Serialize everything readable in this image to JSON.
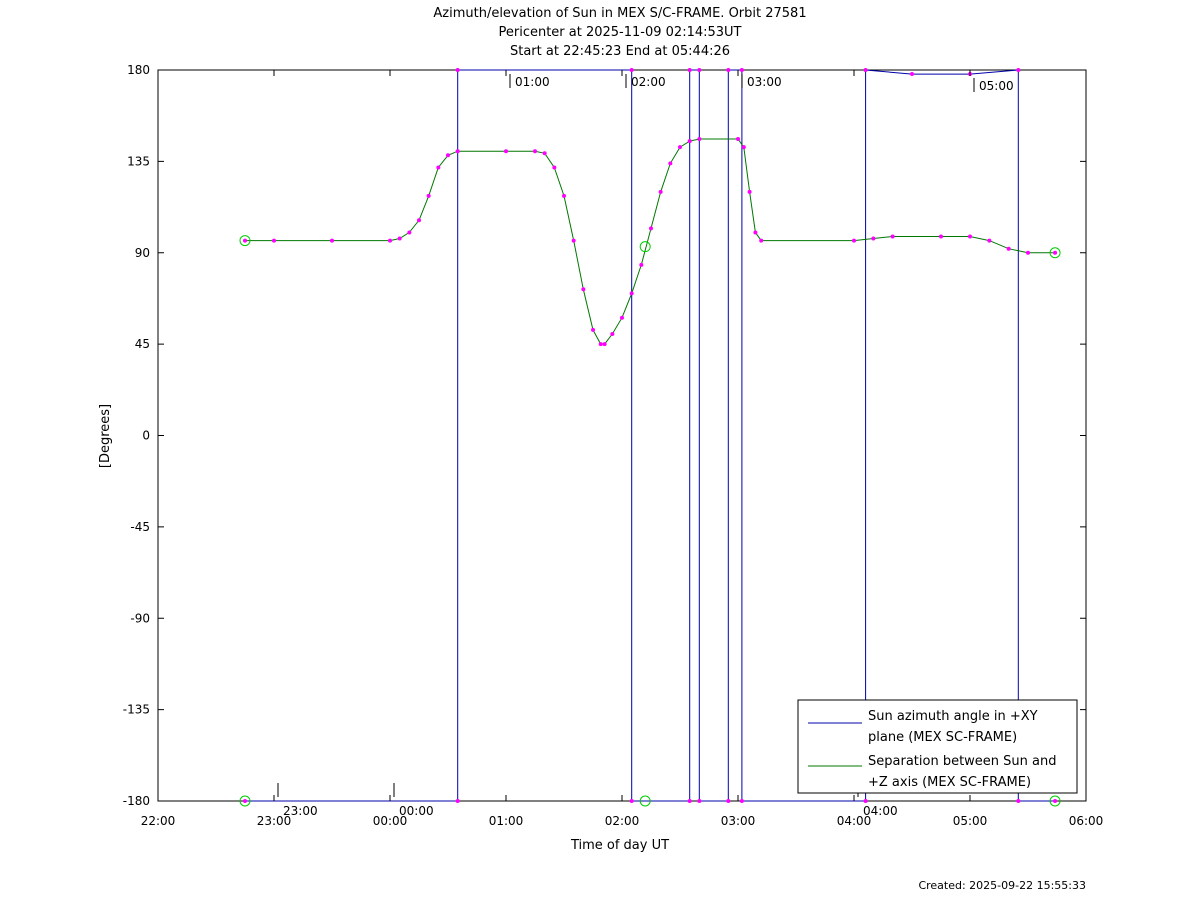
{
  "chart_data": {
    "type": "line",
    "title_lines": [
      "Azimuth/elevation of Sun in MEX S/C-FRAME.  Orbit 27581",
      "Pericenter at 2025-11-09 02:14:53UT",
      "Start at 22:45:23 End at 05:44:26"
    ],
    "xlabel": "Time of day UT",
    "ylabel": "[Degrees]",
    "xlim": [
      "22:00",
      "06:00"
    ],
    "ylim": [
      -180,
      180
    ],
    "x_ticks": [
      "22:00",
      "23:00",
      "00:00",
      "01:00",
      "02:00",
      "03:00",
      "04:00",
      "05:00",
      "06:00"
    ],
    "y_ticks": [
      "180",
      "135",
      "90",
      "45",
      "0",
      "-45",
      "-90",
      "-135",
      "-180"
    ],
    "legend": {
      "placement": "bottom-right",
      "entries": [
        {
          "label_lines": [
            "Sun azimuth angle in +XY",
            "plane (MEX SC-FRAME)"
          ],
          "color": "#0000aa"
        },
        {
          "label_lines": [
            "Separation between Sun and",
            "+Z axis (MEX SC-FRAME)"
          ],
          "color": "#007700"
        }
      ]
    },
    "series": [
      {
        "name": "Sun azimuth angle in +XY plane (MEX SC-FRAME)",
        "color": "#0000aa",
        "points": [
          [
            "22:45",
            -180
          ],
          [
            "00:35",
            -180
          ],
          [
            "00:35",
            180
          ],
          [
            "02:05",
            180
          ],
          [
            "02:05",
            -180
          ],
          [
            "02:35",
            -180
          ],
          [
            "02:35",
            180
          ],
          [
            "02:40",
            180
          ],
          [
            "02:40",
            -180
          ],
          [
            "02:55",
            -180
          ],
          [
            "02:55",
            180
          ],
          [
            "03:02",
            180
          ],
          [
            "03:02",
            -180
          ],
          [
            "04:06",
            -180
          ],
          [
            "04:06",
            180
          ],
          [
            "04:30",
            178
          ],
          [
            "05:00",
            178
          ],
          [
            "05:25",
            180
          ],
          [
            "05:25",
            -180
          ],
          [
            "05:44",
            -180
          ]
        ]
      },
      {
        "name": "Separation between Sun and +Z axis (MEX SC-FRAME)",
        "color": "#007700",
        "points": [
          [
            "22:45",
            96
          ],
          [
            "23:00",
            96
          ],
          [
            "23:30",
            96
          ],
          [
            "00:00",
            96
          ],
          [
            "00:05",
            97
          ],
          [
            "00:10",
            100
          ],
          [
            "00:15",
            106
          ],
          [
            "00:20",
            118
          ],
          [
            "00:25",
            132
          ],
          [
            "00:30",
            138
          ],
          [
            "00:35",
            140
          ],
          [
            "01:00",
            140
          ],
          [
            "01:15",
            140
          ],
          [
            "01:20",
            139
          ],
          [
            "01:25",
            132
          ],
          [
            "01:30",
            118
          ],
          [
            "01:35",
            96
          ],
          [
            "01:40",
            72
          ],
          [
            "01:45",
            52
          ],
          [
            "01:49",
            45
          ],
          [
            "01:51",
            45
          ],
          [
            "01:55",
            50
          ],
          [
            "02:00",
            58
          ],
          [
            "02:05",
            70
          ],
          [
            "02:10",
            84
          ],
          [
            "02:15",
            102
          ],
          [
            "02:20",
            120
          ],
          [
            "02:25",
            134
          ],
          [
            "02:30",
            142
          ],
          [
            "02:35",
            145
          ],
          [
            "02:40",
            146
          ],
          [
            "03:00",
            146
          ],
          [
            "03:03",
            142
          ],
          [
            "03:06",
            120
          ],
          [
            "03:09",
            100
          ],
          [
            "03:12",
            96
          ],
          [
            "04:00",
            96
          ],
          [
            "04:10",
            97
          ],
          [
            "04:20",
            98
          ],
          [
            "04:45",
            98
          ],
          [
            "05:00",
            98
          ],
          [
            "05:10",
            96
          ],
          [
            "05:20",
            92
          ],
          [
            "05:30",
            90
          ],
          [
            "05:44",
            90
          ]
        ]
      }
    ],
    "annotations": [
      {
        "text": "23:00",
        "x": "23:00",
        "y": -180
      },
      {
        "text": "00:00",
        "x": "00:00",
        "y": -180
      },
      {
        "text": "01:00",
        "x": "01:00",
        "y": 180
      },
      {
        "text": "02:00",
        "x": "02:00",
        "y": 180
      },
      {
        "text": "03:00",
        "x": "03:00",
        "y": 180
      },
      {
        "text": "04:00",
        "x": "04:00",
        "y": -180
      },
      {
        "text": "05:00",
        "x": "05:00",
        "y": 178
      }
    ],
    "marker_color": "#ff00ff",
    "circle_marker_color": "#00cc00",
    "circle_markers": [
      [
        "22:45",
        96
      ],
      [
        "22:45",
        -180
      ],
      [
        "02:12",
        93
      ],
      [
        "02:12",
        -180
      ],
      [
        "05:44",
        90
      ],
      [
        "05:44",
        -180
      ]
    ],
    "grid": false
  },
  "footer": {
    "created": "Created: 2025-09-22 15:55:33"
  }
}
